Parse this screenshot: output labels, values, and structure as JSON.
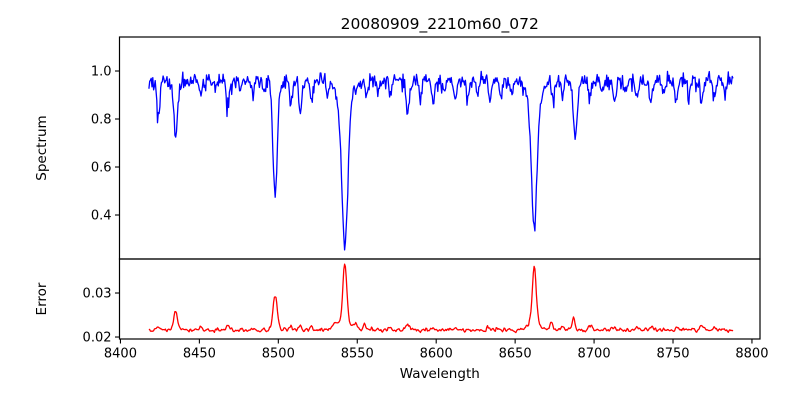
{
  "figure": {
    "background": "#ffffff",
    "axis_color": "#000000"
  },
  "chart_data": [
    {
      "type": "line",
      "name": "spectrum-panel",
      "title": "20080909_2210m60_072",
      "ylabel": "Spectrum",
      "line_color": "#0000ff",
      "xlim": [
        8399.4,
        8805.1
      ],
      "ylim": [
        0.2167,
        1.1417
      ],
      "yticks": [
        0.4,
        0.6,
        0.8,
        1.0
      ],
      "ytick_labels": [
        "0.4",
        "0.6",
        "0.8",
        "1.0"
      ],
      "x_start": 8418,
      "x_end": 8788,
      "x_step": 0.5,
      "continuum": 0.965,
      "noise": {
        "seed": 20080909,
        "hf_sigma": 0.013,
        "skew_sigma": 0.02
      },
      "absorption_lines": [
        [
          8424,
          0.15,
          1.0
        ],
        [
          8435,
          0.23,
          1.2
        ],
        [
          8451,
          0.07,
          0.9
        ],
        [
          8460,
          0.05,
          0.8
        ],
        [
          8468,
          0.09,
          1.0
        ],
        [
          8476,
          0.06,
          0.8
        ],
        [
          8484,
          0.06,
          0.9
        ],
        [
          8491,
          0.05,
          0.8
        ],
        [
          8498.0,
          0.48,
          1.4
        ],
        [
          8508,
          0.09,
          0.9
        ],
        [
          8514,
          0.13,
          1.0
        ],
        [
          8521,
          0.09,
          0.9
        ],
        [
          8531,
          0.05,
          0.8
        ],
        [
          8542.1,
          0.58,
          1.8
        ],
        [
          8542.1,
          0.12,
          4.5
        ],
        [
          8556,
          0.07,
          0.9
        ],
        [
          8563,
          0.05,
          0.8
        ],
        [
          8571,
          0.06,
          0.9
        ],
        [
          8582,
          0.13,
          1.1
        ],
        [
          8590,
          0.06,
          0.8
        ],
        [
          8598,
          0.1,
          1.0
        ],
        [
          8605,
          0.05,
          0.8
        ],
        [
          8612,
          0.09,
          0.9
        ],
        [
          8620,
          0.07,
          0.9
        ],
        [
          8626,
          0.06,
          0.8
        ],
        [
          8634,
          0.08,
          0.9
        ],
        [
          8641,
          0.07,
          0.9
        ],
        [
          8648,
          0.06,
          0.8
        ],
        [
          8662.1,
          0.53,
          1.7
        ],
        [
          8662.1,
          0.1,
          4.5
        ],
        [
          8674,
          0.09,
          0.9
        ],
        [
          8680,
          0.07,
          0.8
        ],
        [
          8688,
          0.25,
          1.2
        ],
        [
          8697,
          0.08,
          0.9
        ],
        [
          8705,
          0.06,
          0.8
        ],
        [
          8713,
          0.09,
          0.9
        ],
        [
          8720,
          0.06,
          0.8
        ],
        [
          8727,
          0.07,
          0.9
        ],
        [
          8736,
          0.1,
          1.0
        ],
        [
          8744,
          0.06,
          0.8
        ],
        [
          8752,
          0.09,
          0.9
        ],
        [
          8760,
          0.07,
          0.8
        ],
        [
          8768,
          0.09,
          0.9
        ],
        [
          8776,
          0.06,
          0.8
        ],
        [
          8783,
          0.05,
          0.8
        ]
      ]
    },
    {
      "type": "line",
      "name": "error-panel",
      "ylabel": "Error",
      "xlabel": "Wavelength",
      "line_color": "#ff0000",
      "xlim": [
        8399.4,
        8805.1
      ],
      "ylim": [
        0.01955,
        0.03773
      ],
      "yticks": [
        0.02,
        0.03
      ],
      "ytick_labels": [
        "0.02",
        "0.03"
      ],
      "xticks": [
        8400,
        8450,
        8500,
        8550,
        8600,
        8650,
        8700,
        8750,
        8800
      ],
      "xtick_labels": [
        "8400",
        "8450",
        "8500",
        "8550",
        "8600",
        "8650",
        "8700",
        "8750",
        "8800"
      ],
      "x_start": 8418,
      "x_end": 8788,
      "x_step": 0.5,
      "baseline": 0.0215,
      "noise": {
        "seed": 72,
        "hf_sigma": 0.00025,
        "skew_sigma": 0.0004
      },
      "emission_lines": [
        [
          8424,
          0.0008,
          1.0
        ],
        [
          8435,
          0.004,
          1.2
        ],
        [
          8451,
          0.0006,
          0.9
        ],
        [
          8468,
          0.0012,
          1.0
        ],
        [
          8484,
          0.0005,
          0.9
        ],
        [
          8498.0,
          0.008,
          1.3
        ],
        [
          8508,
          0.0007,
          0.9
        ],
        [
          8514,
          0.001,
          1.0
        ],
        [
          8521,
          0.0008,
          0.9
        ],
        [
          8536,
          0.0013,
          1.6
        ],
        [
          8542.1,
          0.013,
          1.2
        ],
        [
          8542.1,
          0.0022,
          3.5
        ],
        [
          8549,
          0.0012,
          1.2
        ],
        [
          8555,
          0.001,
          1.0
        ],
        [
          8571,
          0.0005,
          0.9
        ],
        [
          8582,
          0.0014,
          1.0
        ],
        [
          8598,
          0.0006,
          0.9
        ],
        [
          8612,
          0.0005,
          0.9
        ],
        [
          8634,
          0.0005,
          0.9
        ],
        [
          8662.1,
          0.0125,
          1.2
        ],
        [
          8662.1,
          0.002,
          3.5
        ],
        [
          8673,
          0.002,
          0.9
        ],
        [
          8680,
          0.0008,
          0.8
        ],
        [
          8687,
          0.0028,
          0.9
        ],
        [
          8697,
          0.0007,
          0.9
        ],
        [
          8713,
          0.0007,
          0.9
        ],
        [
          8727,
          0.0005,
          0.8
        ],
        [
          8736,
          0.0008,
          0.9
        ],
        [
          8752,
          0.0006,
          0.8
        ],
        [
          8768,
          0.0011,
          0.9
        ],
        [
          8776,
          0.0008,
          0.8
        ]
      ]
    }
  ]
}
